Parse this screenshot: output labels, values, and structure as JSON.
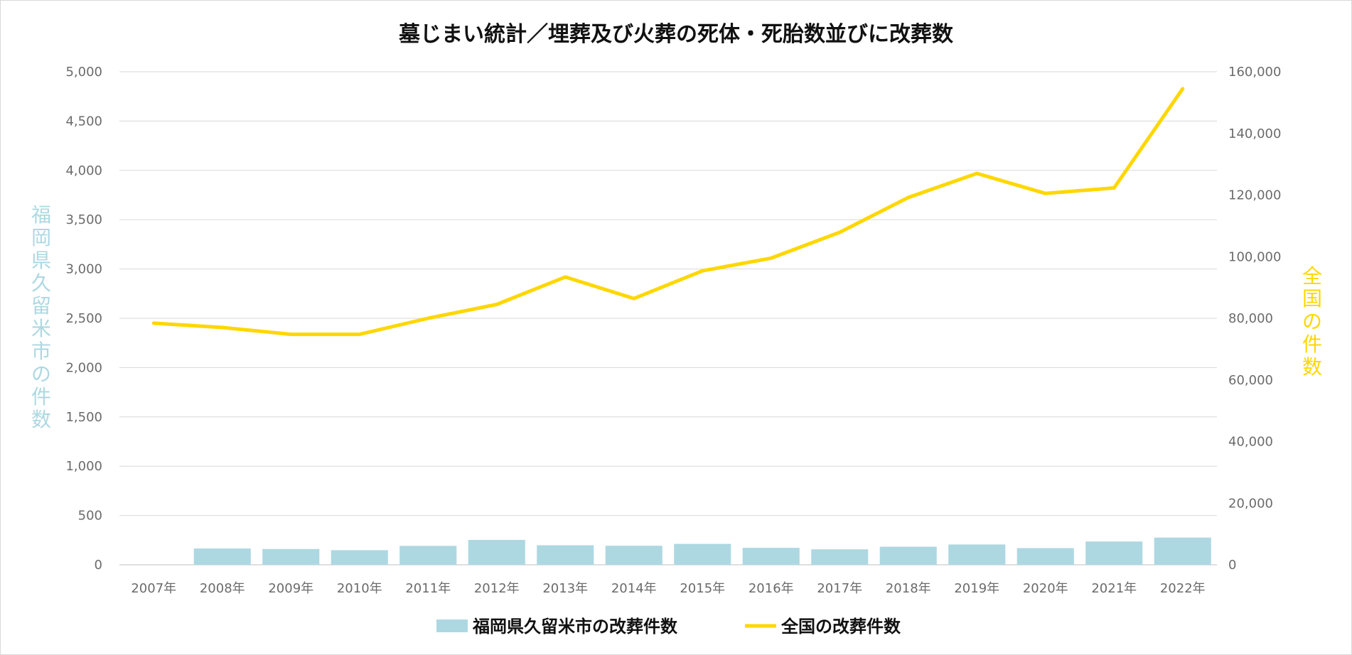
{
  "chart_data": {
    "type": "bar",
    "title": "墓じまい統計／埋葬及び火葬の死体・死胎数並びに改葬数",
    "categories": [
      "2007年",
      "2008年",
      "2009年",
      "2010年",
      "2011年",
      "2012年",
      "2013年",
      "2014年",
      "2015年",
      "2016年",
      "2017年",
      "2018年",
      "2019年",
      "2020年",
      "2021年",
      "2022年"
    ],
    "series": [
      {
        "name": "福岡県久留米市の改葬件数",
        "type": "bar",
        "axis": "left",
        "color": "#add8e2",
        "values": [
          0,
          165,
          160,
          148,
          192,
          252,
          198,
          193,
          212,
          172,
          157,
          183,
          206,
          169,
          236,
          276
        ]
      },
      {
        "name": "全国の改葬件数",
        "type": "line",
        "axis": "right",
        "color": "#ffd700",
        "values": [
          78400,
          77000,
          74800,
          74800,
          80000,
          84500,
          93400,
          86400,
          95400,
          99500,
          107900,
          119200,
          127000,
          120500,
          122300,
          154500
        ]
      }
    ],
    "ylabel_left": "福岡県久留米市の件数",
    "ylabel_right": "全国の件数",
    "ylim_left": [
      0,
      5000
    ],
    "yticks_left": [
      "5,000",
      "4,500",
      "4,000",
      "3,500",
      "3,000",
      "2,500",
      "2,000",
      "1,500",
      "1,000",
      "500",
      "0"
    ],
    "ylim_right": [
      0,
      160000
    ],
    "yticks_right": [
      "160,000",
      "140,000",
      "120,000",
      "100,000",
      "80,000",
      "60,000",
      "40,000",
      "20,000",
      "0"
    ],
    "grid": true,
    "legend_position": "bottom"
  }
}
